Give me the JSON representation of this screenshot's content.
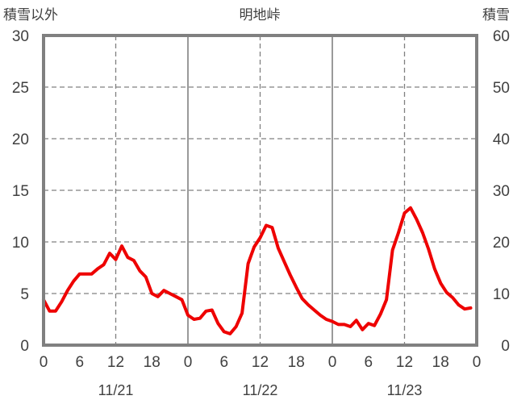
{
  "chart_data": {
    "type": "line",
    "title": "明地峠",
    "y_left_label": "積雪以外",
    "y_right_label": "積雪",
    "y_left_range": [
      0,
      30
    ],
    "y_left_ticks": [
      "0",
      "5",
      "10",
      "15",
      "20",
      "25",
      "30"
    ],
    "y_right_range": [
      0,
      60
    ],
    "y_right_ticks": [
      "0",
      "10",
      "20",
      "30",
      "40",
      "50",
      "60"
    ],
    "x_range": [
      0,
      72
    ],
    "x_tick_labels": [
      "0",
      "6",
      "12",
      "18",
      "0",
      "6",
      "12",
      "18",
      "0",
      "6",
      "12",
      "18",
      "0"
    ],
    "date_labels": [
      "11/21",
      "11/22",
      "11/23"
    ],
    "grid": true,
    "colors": {
      "primary": "#ee0000",
      "secondary": "#7030a0",
      "frame": "#808080",
      "grid": "#808080",
      "text": "#404040"
    },
    "series": [
      {
        "axis": "left",
        "color": "#ee0000",
        "x": [
          0,
          1,
          2,
          3,
          4,
          5,
          6,
          7,
          8,
          9,
          10,
          11,
          12,
          13,
          14,
          15,
          16,
          17,
          18,
          19,
          20,
          21,
          22,
          23,
          24,
          25,
          26,
          27,
          28,
          29,
          30,
          31,
          32,
          33,
          34,
          35,
          36,
          37,
          38,
          39,
          40,
          41,
          42,
          43,
          44,
          45,
          46,
          47,
          48,
          49,
          50,
          51,
          52,
          53,
          54,
          55,
          56,
          57,
          58,
          59,
          60,
          61,
          62,
          63,
          64,
          65,
          66,
          67,
          68,
          69,
          70,
          71
        ],
        "values": [
          4.4,
          3.3,
          3.3,
          4.2,
          5.3,
          6.2,
          6.9,
          6.9,
          6.9,
          7.4,
          7.8,
          8.9,
          8.3,
          9.6,
          8.5,
          8.2,
          7.2,
          6.6,
          5.0,
          4.7,
          5.3,
          5.0,
          4.7,
          4.4,
          2.9,
          2.5,
          2.6,
          3.3,
          3.4,
          2.1,
          1.3,
          1.1,
          1.8,
          3.1,
          7.9,
          9.5,
          10.4,
          11.6,
          11.4,
          9.4,
          8.1,
          6.8,
          5.6,
          4.5,
          3.9,
          3.4,
          2.9,
          2.5,
          2.3,
          2.0,
          2.0,
          1.8,
          2.4,
          1.5,
          2.1,
          1.9,
          3.0,
          4.4,
          9.2,
          10.9,
          12.8,
          13.3,
          12.2,
          10.9,
          9.3,
          7.4,
          6.0,
          5.1,
          4.6,
          3.9,
          3.5,
          3.6
        ]
      },
      {
        "axis": "right",
        "color": "#7030a0",
        "x": [
          0,
          72
        ],
        "values": [
          0,
          0
        ]
      }
    ]
  }
}
